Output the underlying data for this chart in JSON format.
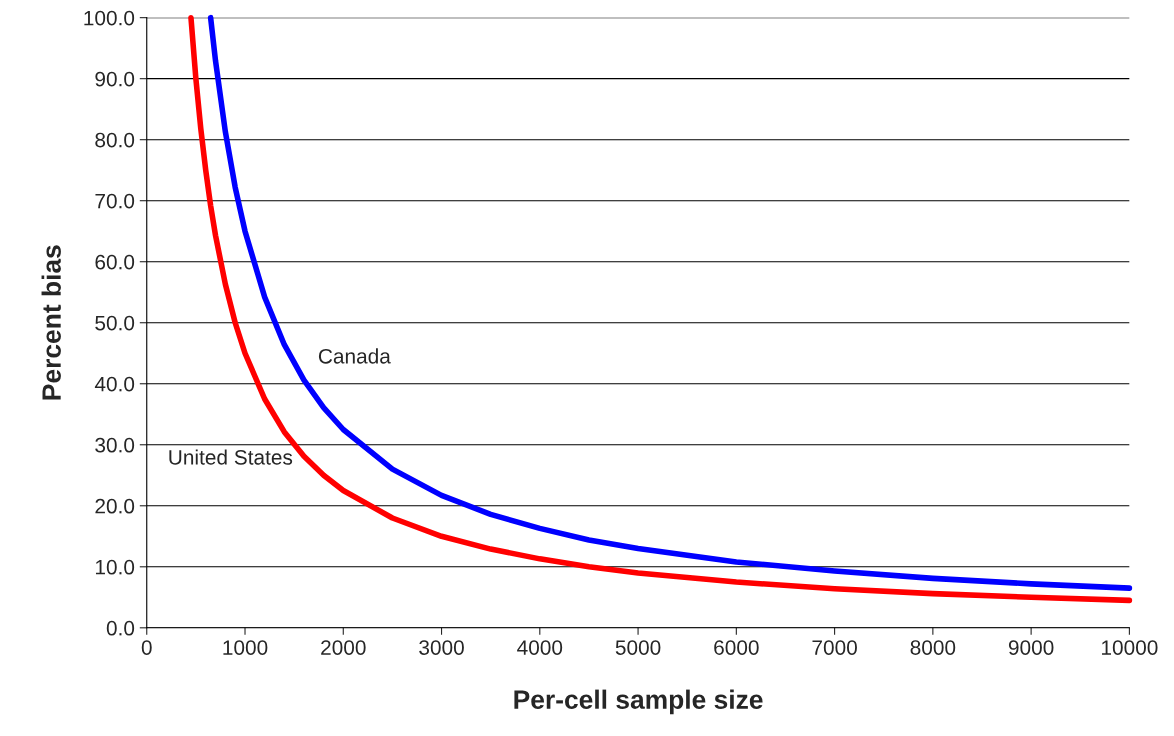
{
  "chart_data": {
    "type": "line",
    "xlabel": "Per-cell sample size",
    "ylabel": "Percent bias",
    "xlim": [
      0,
      10000
    ],
    "xticks": [
      0,
      1000,
      2000,
      3000,
      4000,
      5000,
      6000,
      7000,
      8000,
      9000,
      10000
    ],
    "ylim": [
      0,
      100
    ],
    "yticks": [
      {
        "value": 0,
        "label": "0.0"
      },
      {
        "value": 10,
        "label": "10.0"
      },
      {
        "value": 20,
        "label": "20.0"
      },
      {
        "value": 30,
        "label": "30.0"
      },
      {
        "value": 40,
        "label": "40.0"
      },
      {
        "value": 50,
        "label": "50.0"
      },
      {
        "value": 60,
        "label": "60.0"
      },
      {
        "value": 70,
        "label": "70.0"
      },
      {
        "value": 80,
        "label": "80.0"
      },
      {
        "value": 90,
        "label": "90.0"
      },
      {
        "value": 100,
        "label": "100.0"
      }
    ],
    "grid": "y",
    "legend": false,
    "marker": "none",
    "line_style": "solid",
    "series": [
      {
        "name": "Canada",
        "color": "#0000ff",
        "x": [
          650,
          700,
          800,
          900,
          1000,
          1200,
          1400,
          1600,
          1800,
          2000,
          2500,
          3000,
          3500,
          4000,
          4500,
          5000,
          6000,
          7000,
          8000,
          9000,
          10000
        ],
        "values": [
          100,
          92.9,
          81.3,
          72.2,
          65,
          54.2,
          46.4,
          40.6,
          36.1,
          32.5,
          26,
          21.7,
          18.6,
          16.3,
          14.4,
          13,
          10.8,
          9.3,
          8.1,
          7.2,
          6.5
        ]
      },
      {
        "name": "United States",
        "color": "#ff0000",
        "x": [
          450,
          500,
          550,
          600,
          650,
          700,
          800,
          900,
          1000,
          1200,
          1400,
          1600,
          1800,
          2000,
          2500,
          3000,
          3500,
          4000,
          4500,
          5000,
          6000,
          7000,
          8000,
          9000,
          10000
        ],
        "values": [
          100,
          90,
          81.8,
          75,
          69.2,
          64.3,
          56.3,
          50,
          45,
          37.5,
          32.1,
          28.1,
          25,
          22.5,
          18,
          15,
          12.9,
          11.3,
          10,
          9,
          7.5,
          6.4,
          5.6,
          5,
          4.5
        ]
      }
    ]
  }
}
